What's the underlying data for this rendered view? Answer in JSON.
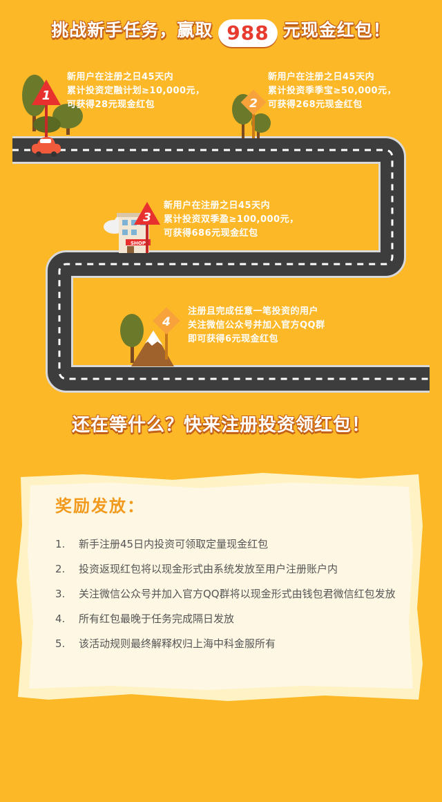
{
  "header": {
    "prefix": "挑战新手任务，赢取",
    "amount": "988",
    "suffix": "元现金红包！"
  },
  "tasks": [
    {
      "num": "1",
      "lines": [
        "新用户在注册之日45天内",
        "累计投资定融计划≥10,000元，",
        "可获得28元现金红包"
      ]
    },
    {
      "num": "2",
      "lines": [
        "新用户在注册之日45天内",
        "累计投资季季宝≥50,000元，",
        "可获得268元现金红包"
      ]
    },
    {
      "num": "3",
      "lines": [
        "新用户在注册之日45天内",
        "累计投资双季盈≥100,000元，",
        "可获得686元现金红包"
      ]
    },
    {
      "num": "4",
      "lines": [
        "注册且完成任意一笔投资的用户",
        "关注微信公众号并加入官方QQ群",
        "即可获得6元现金红包"
      ]
    }
  ],
  "shop_sign": "SHOP",
  "cta": "还在等什么？快来注册投资领红包！",
  "rules": {
    "title": "奖励发放：",
    "items": [
      {
        "num": "1.",
        "text": "新手注册45日内投资可领取定量现金红包"
      },
      {
        "num": "2.",
        "text": "投资返现红包将以现金形式由系统发放至用户注册账户内"
      },
      {
        "num": "3.",
        "text": "关注微信公众号并加入官方QQ群将以现金形式由钱包君微信红包发放"
      },
      {
        "num": "4.",
        "text": "所有红包最晚于任务完成隔日发放"
      },
      {
        "num": "5.",
        "text": "该活动规则最终解释权归上海中科金服所有"
      }
    ]
  },
  "colors": {
    "background": "#fdb827",
    "road": "#3d3d3d",
    "marker_red": "#e8312e",
    "marker_orange": "#f7a23b",
    "rules_title": "#f29a1d"
  }
}
